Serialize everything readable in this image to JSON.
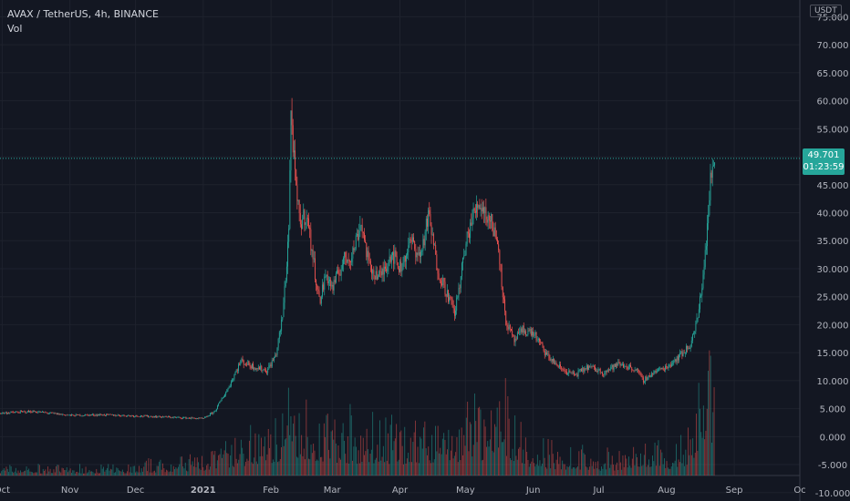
{
  "symbol_title": "AVAX / TetherUS, 4h, BINANCE",
  "indicator_label": "Vol",
  "currency": "USDT",
  "colors": {
    "up": "#26a69a",
    "down": "#ef5350",
    "background": "#131722",
    "grid": "#1e222d",
    "axis_text": "#b2b5be"
  },
  "chart_data": {
    "type": "line",
    "title": "AVAX / TetherUS, 4h, BINANCE",
    "ylabel": "USDT",
    "x_tick_labels": [
      "Oct",
      "Nov",
      "Dec",
      "2021",
      "Feb",
      "Mar",
      "Apr",
      "May",
      "Jun",
      "Jul",
      "Aug",
      "Sep",
      "Oc"
    ],
    "y_ticks": [
      -10,
      -5,
      0,
      5,
      10,
      15,
      20,
      25,
      30,
      35,
      40,
      45,
      50,
      55,
      60,
      65,
      70,
      75
    ],
    "y_tick_labels": [
      "-10.000",
      "-5.000",
      "0.000",
      "5.000",
      "10.000",
      "15.000",
      "20.000",
      "25.000",
      "30.000",
      "35.000",
      "40.000",
      "45.000",
      "",
      "55.000",
      "60.000",
      "65.000",
      "70.000",
      "75.000"
    ],
    "ylim": [
      -11.5,
      78
    ],
    "last_price": 49.701,
    "last_price_label": "49.701",
    "countdown": "01:23:59",
    "series": [
      {
        "kind": "price",
        "x": [
          "2020-09-30",
          "2020-10-15",
          "2020-11-01",
          "2020-11-15",
          "2020-12-01",
          "2020-12-15",
          "2021-01-01",
          "2021-01-06",
          "2021-01-12",
          "2021-01-18",
          "2021-01-24",
          "2021-01-30",
          "2021-02-03",
          "2021-02-06",
          "2021-02-08",
          "2021-02-09",
          "2021-02-10",
          "2021-02-12",
          "2021-02-14",
          "2021-02-17",
          "2021-02-20",
          "2021-02-23",
          "2021-02-26",
          "2021-03-01",
          "2021-03-06",
          "2021-03-10",
          "2021-03-14",
          "2021-03-18",
          "2021-03-23",
          "2021-03-28",
          "2021-04-01",
          "2021-04-06",
          "2021-04-10",
          "2021-04-14",
          "2021-04-18",
          "2021-04-22",
          "2021-04-26",
          "2021-04-30",
          "2021-05-03",
          "2021-05-07",
          "2021-05-10",
          "2021-05-13",
          "2021-05-16",
          "2021-05-19",
          "2021-05-23",
          "2021-05-27",
          "2021-06-01",
          "2021-06-07",
          "2021-06-14",
          "2021-06-20",
          "2021-06-26",
          "2021-07-03",
          "2021-07-10",
          "2021-07-18",
          "2021-07-21",
          "2021-07-26",
          "2021-08-01",
          "2021-08-07",
          "2021-08-11",
          "2021-08-13",
          "2021-08-15",
          "2021-08-17",
          "2021-08-19",
          "2021-08-21",
          "2021-08-23"
        ],
        "values": [
          4.2,
          4.5,
          3.8,
          3.9,
          3.7,
          3.5,
          3.2,
          4.5,
          8.5,
          13.5,
          12.5,
          11.8,
          14.5,
          21.0,
          31.0,
          38.0,
          58.5,
          45.0,
          38.0,
          40.0,
          32.0,
          24.0,
          29.0,
          26.5,
          31.5,
          32.5,
          38.5,
          30.0,
          28.5,
          33.0,
          30.0,
          35.0,
          32.0,
          39.5,
          30.0,
          26.0,
          22.0,
          32.0,
          38.0,
          42.0,
          40.0,
          38.0,
          34.0,
          21.0,
          17.0,
          19.0,
          18.5,
          14.5,
          12.0,
          11.0,
          12.5,
          11.5,
          13.0,
          12.0,
          10.0,
          11.5,
          12.5,
          14.5,
          16.0,
          18.0,
          21.0,
          27.0,
          35.0,
          46.0,
          49.7
        ]
      },
      {
        "kind": "volume",
        "x": [
          "2020-09-30",
          "2020-11-01",
          "2020-12-01",
          "2021-01-01",
          "2021-01-15",
          "2021-02-01",
          "2021-02-10",
          "2021-03-01",
          "2021-04-01",
          "2021-05-01",
          "2021-05-20",
          "2021-06-01",
          "2021-07-01",
          "2021-08-01",
          "2021-08-12",
          "2021-08-16",
          "2021-08-20",
          "2021-08-23"
        ],
        "values": [
          0.3,
          0.25,
          0.3,
          0.6,
          1.0,
          1.5,
          2.3,
          1.6,
          1.4,
          1.8,
          2.2,
          0.9,
          0.6,
          0.8,
          1.2,
          2.8,
          4.2,
          3.6
        ]
      }
    ]
  }
}
